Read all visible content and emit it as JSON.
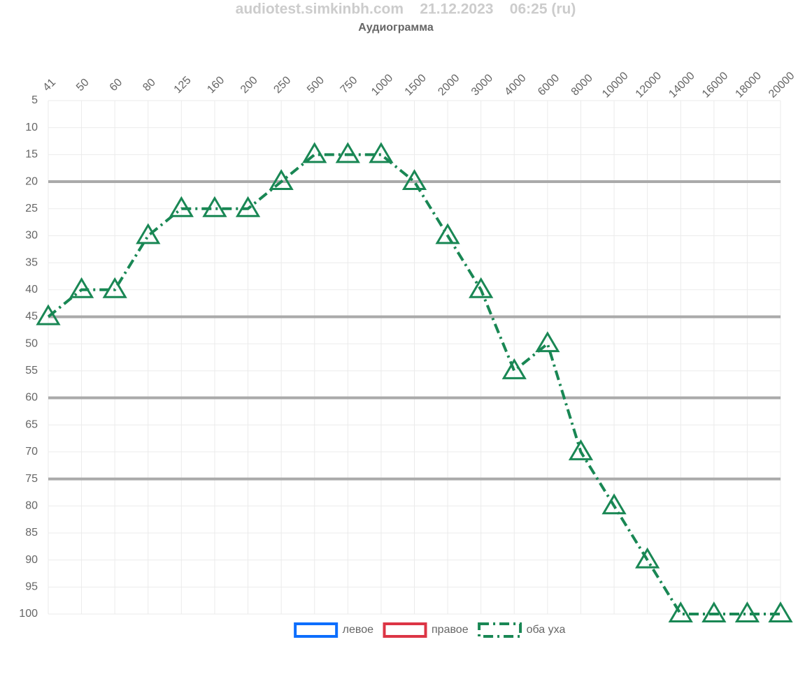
{
  "chart_data": {
    "type": "line",
    "title": "audiotest.simkinbh.com    21.12.2023    06:25 (ru)",
    "subtitle": "Аудиограмма",
    "categories": [
      "41",
      "50",
      "60",
      "80",
      "125",
      "160",
      "200",
      "250",
      "500",
      "750",
      "1000",
      "1500",
      "2000",
      "3000",
      "4000",
      "6000",
      "8000",
      "10000",
      "12000",
      "14000",
      "16000",
      "18000",
      "20000"
    ],
    "series": [
      {
        "name": "левое",
        "color": "#0d6efd",
        "values": [
          null,
          null,
          null,
          null,
          null,
          null,
          null,
          null,
          null,
          null,
          null,
          null,
          null,
          null,
          null,
          null,
          null,
          null,
          null,
          null,
          null,
          null,
          null
        ]
      },
      {
        "name": "правое",
        "color": "#dc3545",
        "values": [
          null,
          null,
          null,
          null,
          null,
          null,
          null,
          null,
          null,
          null,
          null,
          null,
          null,
          null,
          null,
          null,
          null,
          null,
          null,
          null,
          null,
          null,
          null
        ]
      },
      {
        "name": "оба уха",
        "color": "#198754",
        "dash": "dash-dot",
        "marker": "triangle",
        "values": [
          45,
          40,
          40,
          30,
          25,
          25,
          25,
          20,
          15,
          15,
          15,
          20,
          30,
          40,
          55,
          50,
          70,
          80,
          90,
          100,
          100,
          100,
          100
        ]
      }
    ],
    "ylim": [
      5,
      100
    ],
    "y_reversed": true,
    "yticks": [
      5,
      10,
      15,
      20,
      25,
      30,
      35,
      40,
      45,
      50,
      55,
      60,
      65,
      70,
      75,
      80,
      85,
      90,
      95,
      100
    ],
    "grid": true,
    "x_axis_position": "top",
    "reference_lines": {
      "color": "#aaaaaa",
      "values": [
        20,
        45,
        60,
        75
      ]
    },
    "legend": "bottom"
  }
}
